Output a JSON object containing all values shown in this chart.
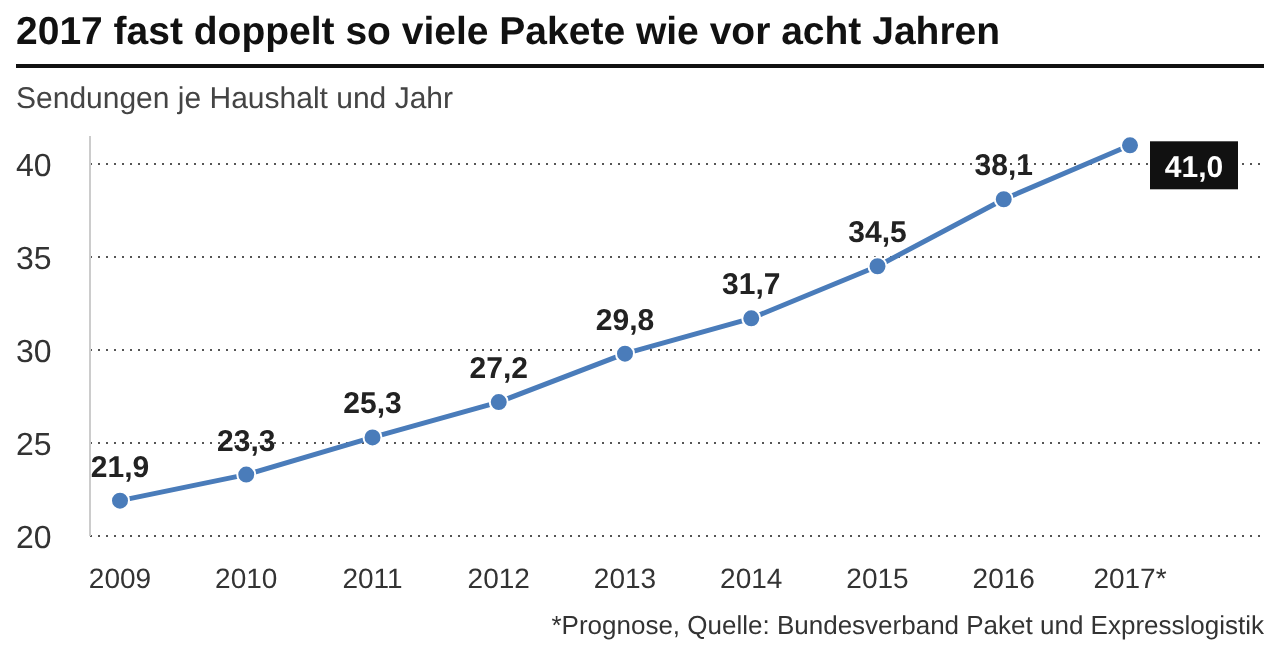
{
  "chart_data": {
    "type": "line",
    "title": "2017 fast doppelt so viele Pakete wie vor acht Jahren",
    "subtitle": "Sendungen je Haushalt und Jahr",
    "categories": [
      "2009",
      "2010",
      "2011",
      "2012",
      "2013",
      "2014",
      "2015",
      "2016",
      "2017*"
    ],
    "series": [
      {
        "color": "#4a7cba",
        "values": [
          21.9,
          23.3,
          25.3,
          27.2,
          29.8,
          31.7,
          34.5,
          38.1,
          41.0
        ],
        "value_labels": [
          "21,9",
          "23,3",
          "25,3",
          "27,2",
          "29,8",
          "31,7",
          "34,5",
          "38,1",
          "41,0"
        ]
      }
    ],
    "ylim": [
      20,
      41.5
    ],
    "yticks": [
      20,
      25,
      30,
      35,
      40
    ],
    "grid": "y",
    "marker": "circle",
    "line_style": "solid",
    "annotations": [
      "*Prognose, Quelle: Bundesverband Paket und Expresslogistik"
    ]
  }
}
